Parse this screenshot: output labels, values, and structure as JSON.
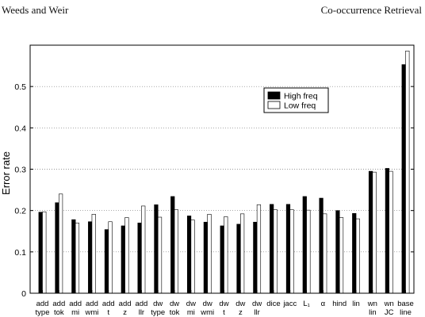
{
  "header": {
    "left": "Weeds and Weir",
    "right": "Co-occurrence Retrieval"
  },
  "chart_data": {
    "type": "bar",
    "title": "",
    "xlabel": "",
    "ylabel": "Error rate",
    "ylim": [
      0,
      0.6
    ],
    "yticks": [
      0,
      0.1,
      0.2,
      0.3,
      0.4,
      0.5
    ],
    "ytick_labels": [
      "0",
      "0.1",
      "0.2",
      "0.3",
      "0.4",
      "0.5"
    ],
    "grid": "horizontal-dotted",
    "legend_position": "top-right",
    "categories": [
      [
        "add",
        "type"
      ],
      [
        "add",
        "tok"
      ],
      [
        "add",
        "mi"
      ],
      [
        "add",
        "wmi"
      ],
      [
        "add",
        "t"
      ],
      [
        "add",
        "z"
      ],
      [
        "add",
        "llr"
      ],
      [
        "dw",
        "type"
      ],
      [
        "dw",
        "tok"
      ],
      [
        "dw",
        "mi"
      ],
      [
        "dw",
        "wmi"
      ],
      [
        "dw",
        "t"
      ],
      [
        "dw",
        "z"
      ],
      [
        "dw",
        "llr"
      ],
      [
        "dice",
        ""
      ],
      [
        "jacc",
        ""
      ],
      [
        "L₁",
        ""
      ],
      [
        "α",
        ""
      ],
      [
        "hind",
        ""
      ],
      [
        "lin",
        ""
      ],
      [
        "wn",
        "lin"
      ],
      [
        "wn",
        "JC"
      ],
      [
        "base",
        "line"
      ]
    ],
    "series": [
      {
        "name": "High freq",
        "color": "#000000",
        "values": [
          0.196,
          0.219,
          0.178,
          0.173,
          0.154,
          0.163,
          0.17,
          0.214,
          0.234,
          0.187,
          0.172,
          0.163,
          0.167,
          0.172,
          0.215,
          0.215,
          0.234,
          0.23,
          0.2,
          0.193,
          0.295,
          0.302,
          0.553
        ]
      },
      {
        "name": "Low freq",
        "color": "#ffffff",
        "values": [
          0.197,
          0.24,
          0.17,
          0.191,
          0.173,
          0.183,
          0.211,
          0.184,
          0.202,
          0.177,
          0.191,
          0.185,
          0.192,
          0.214,
          0.202,
          0.202,
          0.201,
          0.192,
          0.183,
          0.18,
          0.293,
          0.295,
          0.586
        ]
      }
    ]
  }
}
